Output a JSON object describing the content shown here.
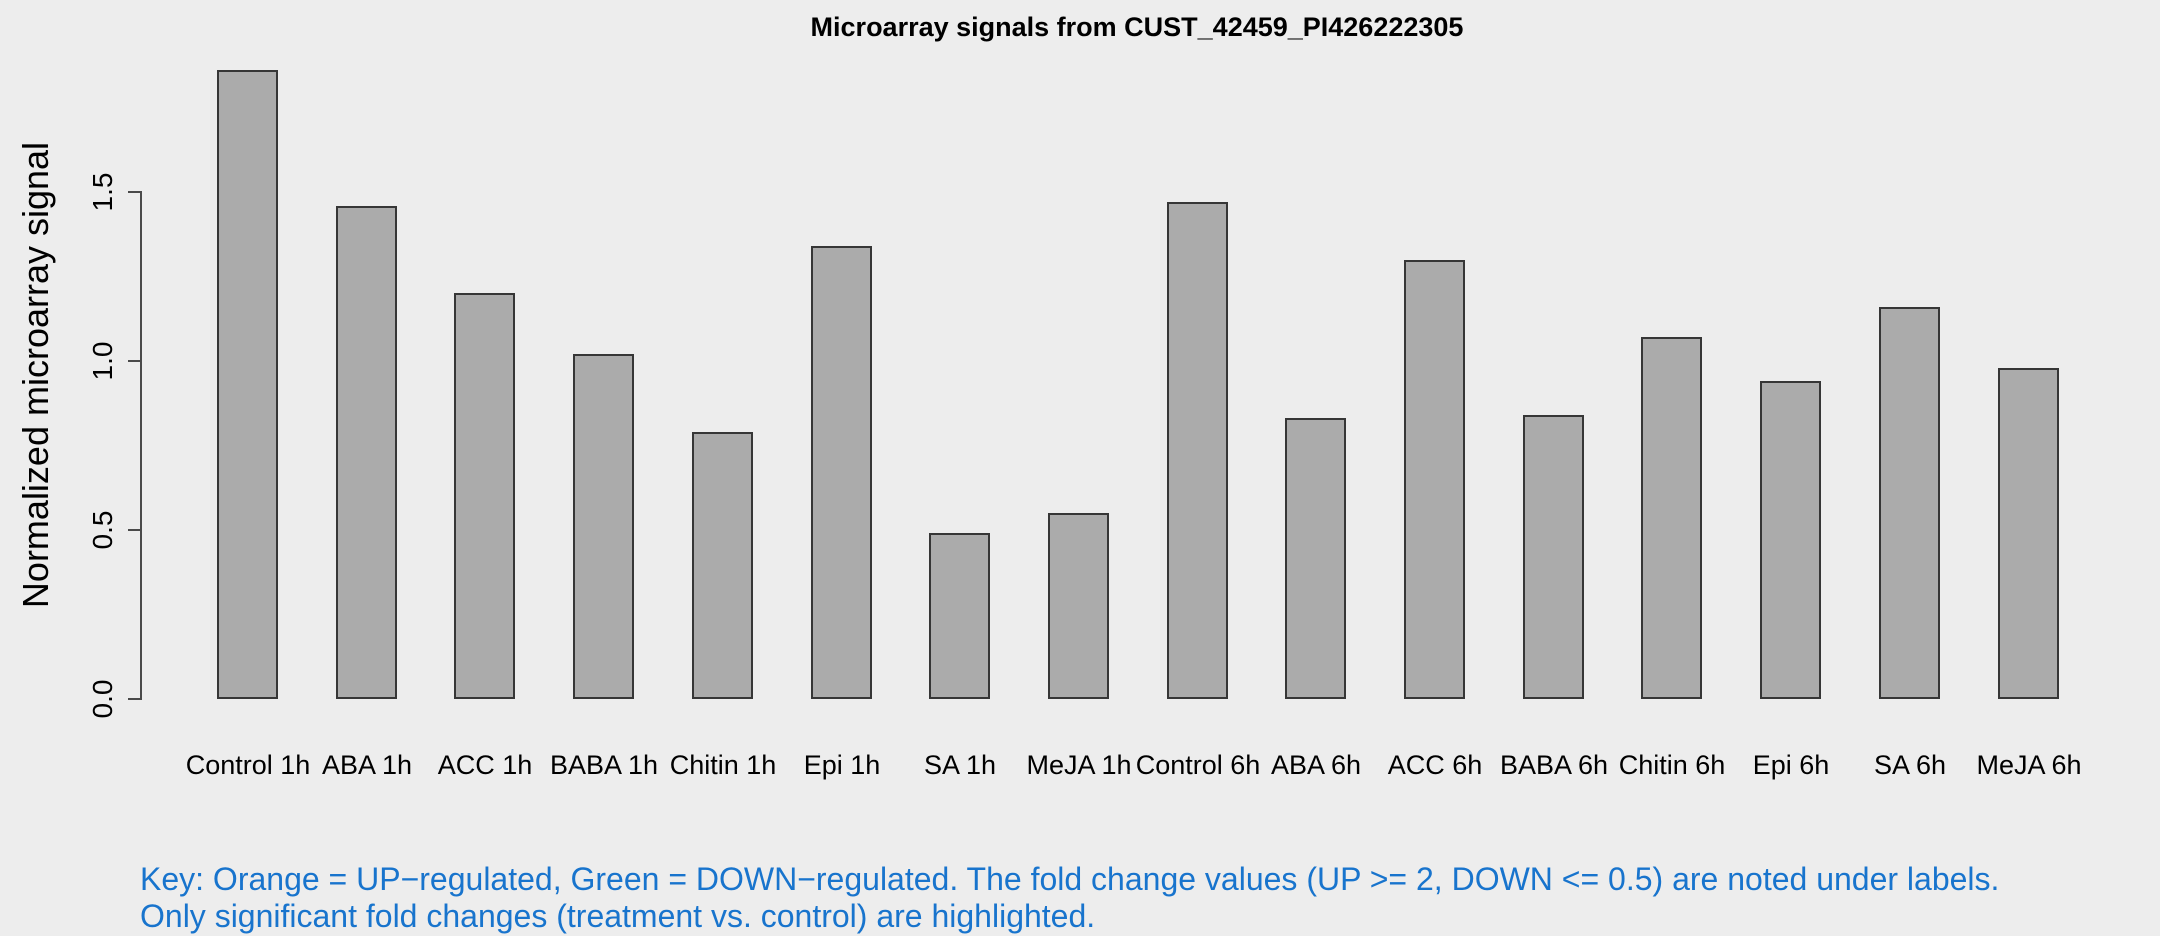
{
  "background": "#EDEDED",
  "chart_data": {
    "type": "bar",
    "title": "Microarray signals from CUST_42459_PI426222305",
    "ylabel": "Normalized microarray signal",
    "xlabel": "",
    "categories": [
      "Control 1h",
      "ABA 1h",
      "ACC 1h",
      "BABA 1h",
      "Chitin 1h",
      "Epi 1h",
      "SA 1h",
      "MeJA 1h",
      "Control 6h",
      "ABA 6h",
      "ACC 6h",
      "BABA 6h",
      "Chitin 6h",
      "Epi 6h",
      "SA 6h",
      "MeJA 6h"
    ],
    "values": [
      1.86,
      1.46,
      1.2,
      1.02,
      0.79,
      1.34,
      0.49,
      0.55,
      1.47,
      0.83,
      1.3,
      0.84,
      1.07,
      0.94,
      1.16,
      0.98
    ],
    "yticks": [
      0.0,
      0.5,
      1.0,
      1.5
    ],
    "ytick_labels": [
      "0.0",
      "0.5",
      "1.0",
      "1.5"
    ],
    "ylim": [
      0,
      1.87
    ],
    "grid": false,
    "legend_position": "none",
    "bar_fill": "#ABABAB",
    "bar_border": "#363636"
  },
  "footnote": {
    "line1": "Key: Orange = UP−regulated, Green = DOWN−regulated. The fold change values (UP >= 2, DOWN <= 0.5) are noted under labels.",
    "line2": "Only significant fold changes (treatment vs. control) are highlighted.",
    "color": "#1874CD"
  }
}
